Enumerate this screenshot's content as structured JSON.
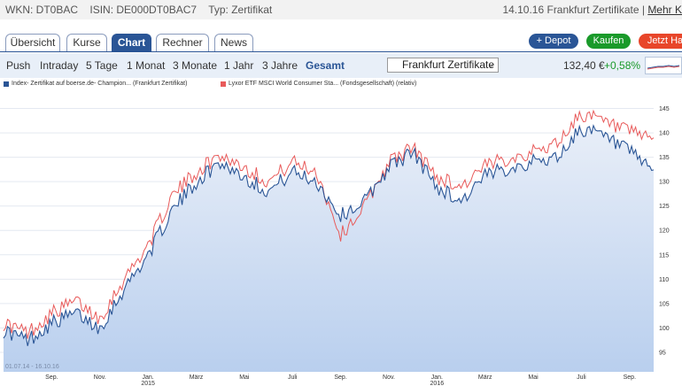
{
  "info": {
    "wkn": "WKN: DT0BAC",
    "isin": "ISIN: DE000DT0BAC7",
    "typ": "Typ: Zertifikat",
    "date_exchange": "14.10.16 Frankfurt Zertifikate |",
    "more": "Mehr K"
  },
  "tabs": [
    "Übersicht",
    "Kurse",
    "Chart",
    "Rechner",
    "News"
  ],
  "actions": {
    "depot": "+ Depot",
    "buy": "Kaufen",
    "trade": "Jetzt Ha"
  },
  "subnav": [
    "Push",
    "Intraday",
    "5 Tage",
    "1 Monat",
    "3 Monate",
    "1 Jahr",
    "3 Jahre",
    "Gesamt"
  ],
  "exchange_select": "Frankfurt Zertifikate",
  "quote": {
    "price": "132,40 €",
    "change": "+0,58%"
  },
  "colors": {
    "series1": "#2a5596",
    "series2": "#e85a5a",
    "accent": "#2a5596",
    "depot": "#2a5596",
    "buy": "#1a9a2a",
    "trade": "#e8462a"
  },
  "chart_data": {
    "type": "line",
    "legend": [
      "Index- Zertifikat auf boerse.de- Champion... (Frankfurt Zertifikat)",
      "Lyxor ETF MSCI World Consumer Sta... (Fondsgesellschaft) (relativ)"
    ],
    "range_label": "01.07.14 - 16.10.16",
    "x_ticks": [
      "Sep.",
      "Nov.",
      "Jan.",
      "2015",
      "März",
      "Mai",
      "Juli",
      "Sep.",
      "Nov.",
      "Jan.",
      "2016",
      "März",
      "Mai",
      "Juli",
      "Sep."
    ],
    "y_ticks": [
      95,
      100,
      105,
      110,
      115,
      120,
      125,
      130,
      135,
      140,
      145
    ],
    "ylim": [
      91,
      148
    ],
    "x_months": [
      "2014-07",
      "2014-08",
      "2014-09",
      "2014-10",
      "2014-11",
      "2014-12",
      "2015-01",
      "2015-02",
      "2015-03",
      "2015-04",
      "2015-05",
      "2015-06",
      "2015-07",
      "2015-08",
      "2015-09",
      "2015-10",
      "2015-11",
      "2015-12",
      "2016-01",
      "2016-02",
      "2016-03",
      "2016-04",
      "2016-05",
      "2016-06",
      "2016-07",
      "2016-08",
      "2016-09",
      "2016-10"
    ],
    "series": [
      {
        "name": "Index- Zertifikat auf boerse.de- Champion... (Frankfurt Zertifikat)",
        "values": [
          99.5,
          97.5,
          101,
          103,
          100,
          108,
          115,
          124,
          130,
          134,
          131,
          128,
          132,
          130,
          123,
          126,
          133,
          136,
          129,
          126,
          131,
          133,
          134,
          135,
          141,
          139,
          136,
          132.4
        ]
      },
      {
        "name": "Lyxor ETF MSCI World Consumer Sta... (Fondsgesellschaft) (relativ)",
        "values": [
          101,
          99,
          103,
          105.5,
          102,
          110,
          117,
          127,
          132,
          135.5,
          133,
          130,
          134,
          132,
          119,
          125,
          134,
          137,
          131,
          129,
          133,
          135,
          136,
          138,
          144,
          142,
          140,
          139
        ]
      }
    ]
  }
}
